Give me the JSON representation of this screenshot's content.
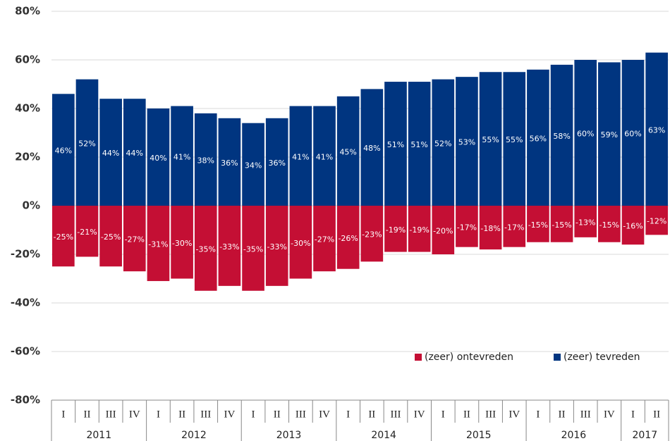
{
  "chart_data": {
    "type": "bar",
    "groups": [
      {
        "name": "2011",
        "categories": [
          "I",
          "II",
          "III",
          "IV"
        ]
      },
      {
        "name": "2012",
        "categories": [
          "I",
          "II",
          "III",
          "IV"
        ]
      },
      {
        "name": "2013",
        "categories": [
          "I",
          "II",
          "III",
          "IV"
        ]
      },
      {
        "name": "2014",
        "categories": [
          "I",
          "II",
          "III",
          "IV"
        ]
      },
      {
        "name": "2015",
        "categories": [
          "I",
          "II",
          "III",
          "IV"
        ]
      },
      {
        "name": "2016",
        "categories": [
          "I",
          "II",
          "III",
          "IV"
        ]
      },
      {
        "name": "2017",
        "categories": [
          "I",
          "II"
        ]
      }
    ],
    "series": [
      {
        "name": "(zeer) ontevreden",
        "color": "#c40f34",
        "values": [
          -25,
          -21,
          -25,
          -27,
          -31,
          -30,
          -35,
          -33,
          -35,
          -33,
          -30,
          -27,
          -26,
          -23,
          -19,
          -19,
          -20,
          -17,
          -18,
          -17,
          -15,
          -15,
          -13,
          -15,
          -16,
          -12
        ],
        "value_labels": [
          "-25%",
          "-21%",
          "-25%",
          "-27%",
          "-31%",
          "-30%",
          "-35%",
          "-33%",
          "-35%",
          "-33%",
          "-30%",
          "-27%",
          "-26%",
          "-23%",
          "-19%",
          "-19%",
          "-20%",
          "-17%",
          "-18%",
          "-17%",
          "-15%",
          "-15%",
          "-13%",
          "-15%",
          "-16%",
          "-12%"
        ]
      },
      {
        "name": "(zeer) tevreden",
        "color": "#003580",
        "values": [
          46,
          52,
          44,
          44,
          40,
          41,
          38,
          36,
          34,
          36,
          41,
          41,
          45,
          48,
          51,
          51,
          52,
          53,
          55,
          55,
          56,
          58,
          60,
          59,
          60,
          63
        ],
        "value_labels": [
          "46%",
          "52%",
          "44%",
          "44%",
          "40%",
          "41%",
          "38%",
          "36%",
          "34%",
          "36%",
          "41%",
          "41%",
          "45%",
          "48%",
          "51%",
          "51%",
          "52%",
          "53%",
          "55%",
          "55%",
          "56%",
          "58%",
          "60%",
          "59%",
          "60%",
          "63%"
        ]
      }
    ],
    "ylim": [
      -80,
      80
    ],
    "yticks": [
      {
        "value": -80,
        "label": "-80%"
      },
      {
        "value": -60,
        "label": "-60%"
      },
      {
        "value": -40,
        "label": "-40%"
      },
      {
        "value": -20,
        "label": "-20%"
      },
      {
        "value": 0,
        "label": "0%"
      },
      {
        "value": 20,
        "label": "20%"
      },
      {
        "value": 40,
        "label": "40%"
      },
      {
        "value": 60,
        "label": "60%"
      },
      {
        "value": 80,
        "label": "80%"
      }
    ],
    "grid": true,
    "legend": "lower right"
  }
}
